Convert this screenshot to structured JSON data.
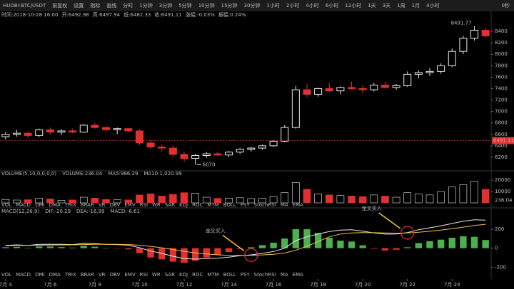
{
  "toolbar": {
    "symbol": "HUOBI:BTC/USDT",
    "buttons": [
      "前复权",
      "设置",
      "指标",
      "画线"
    ],
    "periods": [
      "分时",
      "1分钟",
      "3分钟",
      "5分钟",
      "10分钟",
      "15分钟",
      "30分钟",
      "1小时",
      "2小时",
      "4小时",
      "6小时",
      "12小时",
      "1天",
      "3天",
      "1周",
      "1月"
    ],
    "active": "4小时",
    "right": "0秒"
  },
  "info": [
    "时间:2018-10-28 16:00",
    "开:6492.98",
    "高:6497.94",
    "低:6482.33",
    "收:6491.11",
    "涨幅:-0.03%",
    "振幅:0.24%"
  ],
  "indicators": [
    "VOL",
    "MACD",
    "DMI",
    "DMA",
    "TRIX",
    "BRAR",
    "VR",
    "OBV",
    "EMV",
    "RSI",
    "WR",
    "SAR",
    "KDJ",
    "ROC",
    "MTM",
    "BOLL",
    "PSY",
    "StochRSI",
    "MA",
    "EMA"
  ],
  "chart_data": [
    {
      "type": "candlestick",
      "categories": [
        "7月 4",
        null,
        null,
        null,
        "7月 6",
        null,
        null,
        null,
        "7月 8",
        null,
        null,
        null,
        "7月 10",
        null,
        null,
        null,
        "7月 12",
        null,
        null,
        null,
        "7月 14",
        null,
        null,
        null,
        "7月 16",
        null,
        null,
        null,
        "7月 18",
        null,
        null,
        null,
        "7月 20",
        null,
        null,
        null,
        "7月 22",
        null,
        null,
        null,
        "7月 24",
        null,
        null,
        null
      ],
      "open": [
        6560,
        6600,
        6620,
        6580,
        6680,
        6640,
        6660,
        6640,
        6760,
        6720,
        6680,
        6700,
        6660,
        6450,
        6380,
        6360,
        6250,
        6180,
        6230,
        6260,
        6240,
        6290,
        6340,
        6360,
        6400,
        6480,
        6720,
        7380,
        7300,
        7400,
        7360,
        7420,
        7400,
        7380,
        7460,
        7420,
        7450,
        7650,
        7680,
        7700,
        7800,
        8050,
        8280,
        8420
      ],
      "high": [
        6640,
        6680,
        6650,
        6700,
        6720,
        6690,
        6700,
        6780,
        6800,
        6740,
        6720,
        6710,
        6690,
        6500,
        6420,
        6400,
        6300,
        6260,
        6290,
        6300,
        6310,
        6360,
        6380,
        6420,
        6500,
        6760,
        7450,
        7480,
        7420,
        7500,
        7440,
        7520,
        7460,
        7500,
        7520,
        7480,
        7700,
        7720,
        7760,
        7840,
        8100,
        8320,
        8491.77,
        8460
      ],
      "low": [
        6510,
        6560,
        6540,
        6560,
        6600,
        6590,
        6620,
        6630,
        6700,
        6650,
        6600,
        6640,
        6420,
        6350,
        6300,
        6200,
        6120,
        6070,
        6190,
        6220,
        6200,
        6260,
        6300,
        6330,
        6380,
        6460,
        6700,
        7250,
        7260,
        7340,
        7300,
        7380,
        7320,
        7350,
        7400,
        7380,
        7430,
        7580,
        7620,
        7660,
        7780,
        8000,
        8240,
        8300
      ],
      "close": [
        6600,
        6620,
        6580,
        6680,
        6640,
        6660,
        6640,
        6760,
        6720,
        6680,
        6700,
        6660,
        6450,
        6380,
        6360,
        6250,
        6180,
        6230,
        6260,
        6240,
        6290,
        6340,
        6360,
        6400,
        6480,
        6720,
        7380,
        7300,
        7400,
        7360,
        7420,
        7400,
        7380,
        7460,
        7420,
        7450,
        7650,
        7680,
        7700,
        7800,
        8050,
        8280,
        8420,
        8320
      ],
      "up_color": "#e8e8e8",
      "down_color": "#e0302f",
      "last_price": 6491.11,
      "last_color": "#e0302f",
      "ylim": [
        6000,
        8600
      ],
      "yticks": [
        6200,
        6400,
        6600,
        6800,
        7000,
        7200,
        7400,
        7600,
        7800,
        8000,
        8200,
        8400
      ]
    },
    {
      "type": "bar",
      "title": "VOLUME(5,10,0,0,0,0)",
      "stats": [
        "VOLUME:236.04",
        "MA5:986.29",
        "MA10:1,020.99"
      ],
      "values": [
        3000,
        2500,
        2800,
        4000,
        3500,
        2200,
        2600,
        5000,
        4200,
        3000,
        2800,
        2600,
        7000,
        8000,
        6000,
        7500,
        9000,
        8500,
        5000,
        4000,
        4200,
        4500,
        3800,
        4000,
        5500,
        9000,
        18000,
        12000,
        8000,
        7000,
        6500,
        6000,
        5500,
        7000,
        6000,
        5000,
        9000,
        8000,
        7000,
        10000,
        14000,
        16000,
        19000,
        12000
      ],
      "last_value": 236.04,
      "ylim": [
        0,
        22000
      ],
      "yticks": [
        10000,
        20000
      ]
    },
    {
      "type": "macd",
      "title": "MACD(12,26,9)",
      "stats": [
        "DIF:-20.29",
        "DEA:-16.99",
        "MACD:-6.61"
      ],
      "dif": [
        30,
        35,
        30,
        40,
        42,
        40,
        38,
        50,
        48,
        40,
        38,
        32,
        5,
        -30,
        -55,
        -85,
        -110,
        -115,
        -110,
        -105,
        -95,
        -80,
        -70,
        -55,
        -35,
        0,
        80,
        120,
        150,
        175,
        190,
        195,
        180,
        160,
        148,
        150,
        165,
        195,
        215,
        235,
        260,
        285,
        300,
        295
      ],
      "dea": [
        25,
        28,
        29,
        31,
        33,
        34,
        35,
        38,
        40,
        40,
        40,
        38,
        31,
        19,
        4,
        -14,
        -33,
        -49,
        -61,
        -70,
        -75,
        -76,
        -75,
        -71,
        -64,
        -51,
        -20,
        20,
        70,
        120,
        150,
        160,
        165,
        163,
        160,
        158,
        160,
        168,
        178,
        190,
        205,
        222,
        240,
        252
      ],
      "hist": [
        10,
        14,
        2,
        18,
        18,
        12,
        6,
        24,
        16,
        0,
        -4,
        -12,
        -52,
        -98,
        -118,
        -142,
        -154,
        -132,
        -98,
        -70,
        -40,
        -8,
        10,
        32,
        58,
        102,
        200,
        200,
        160,
        110,
        80,
        70,
        30,
        -6,
        -24,
        -16,
        10,
        54,
        74,
        90,
        110,
        126,
        120,
        86
      ],
      "dif_color": "#e8e8e8",
      "dea_color": "#f0c040",
      "up_color": "#4caf50",
      "down_color": "#e0302f",
      "annotations": [
        "金叉买入",
        "金叉买入"
      ],
      "ylim": [
        -250,
        350
      ],
      "yticks": [
        -200,
        0,
        200
      ]
    }
  ]
}
